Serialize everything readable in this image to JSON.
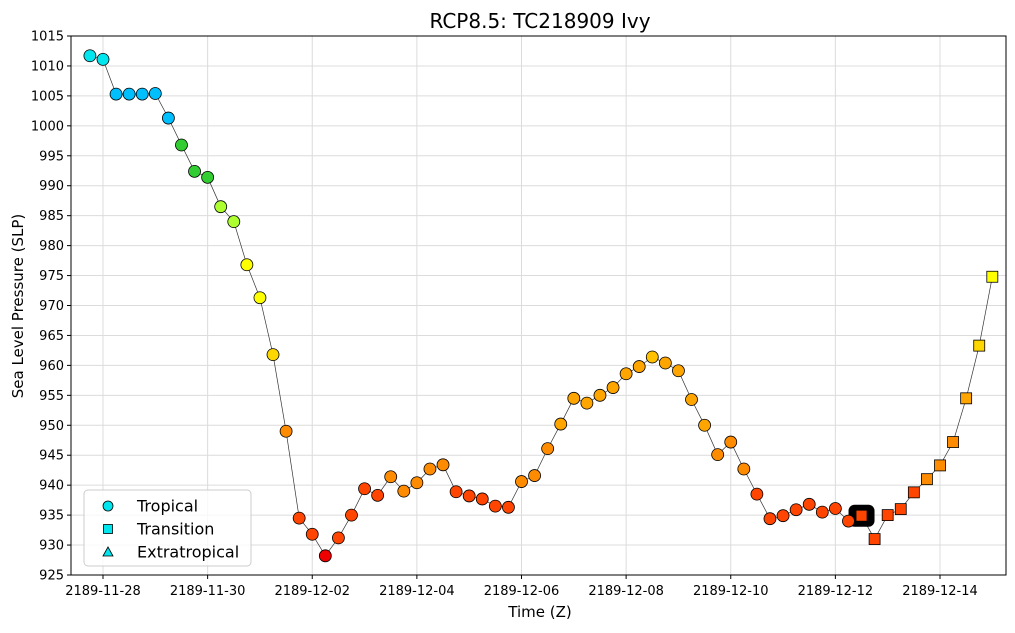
{
  "chart_data": {
    "type": "scatter",
    "title": "RCP8.5: TC218909 Ivy",
    "xlabel": "Time (Z)",
    "ylabel": "Sea Level Pressure (SLP)",
    "ylim": [
      925,
      1015
    ],
    "yticks": [
      925,
      930,
      935,
      940,
      945,
      950,
      955,
      960,
      965,
      970,
      975,
      980,
      985,
      990,
      995,
      1000,
      1005,
      1010,
      1015
    ],
    "xticks": [
      "2189-11-28",
      "2189-11-30",
      "2189-12-02",
      "2189-12-04",
      "2189-12-06",
      "2189-12-08",
      "2189-12-10",
      "2189-12-12",
      "2189-12-14"
    ],
    "xlim": [
      "2189-11-27 18:00",
      "2189-12-15 06:00"
    ],
    "grid": true,
    "legend_position": "lower-left",
    "legend": [
      {
        "label": "Tropical",
        "marker": "circle"
      },
      {
        "label": "Transition",
        "marker": "square"
      },
      {
        "label": "Extratropical",
        "marker": "triangle"
      }
    ],
    "legend_marker_color": "#00e5ee",
    "highlight": {
      "time": "2189-12-12 12:00",
      "slp": 934.9
    },
    "points": [
      {
        "time": "2189-11-27 18:00",
        "slp": 1011.7,
        "phase": "tropical",
        "color": "#00e5ee"
      },
      {
        "time": "2189-11-28 00:00",
        "slp": 1011.1,
        "phase": "tropical",
        "color": "#00e5ee"
      },
      {
        "time": "2189-11-28 06:00",
        "slp": 1005.3,
        "phase": "tropical",
        "color": "#00bfff"
      },
      {
        "time": "2189-11-28 12:00",
        "slp": 1005.3,
        "phase": "tropical",
        "color": "#00bfff"
      },
      {
        "time": "2189-11-28 18:00",
        "slp": 1005.3,
        "phase": "tropical",
        "color": "#00bfff"
      },
      {
        "time": "2189-11-29 00:00",
        "slp": 1005.4,
        "phase": "tropical",
        "color": "#00bfff"
      },
      {
        "time": "2189-11-29 06:00",
        "slp": 1001.3,
        "phase": "tropical",
        "color": "#00bfff"
      },
      {
        "time": "2189-11-29 12:00",
        "slp": 996.8,
        "phase": "tropical",
        "color": "#32cd32"
      },
      {
        "time": "2189-11-29 18:00",
        "slp": 992.4,
        "phase": "tropical",
        "color": "#32cd32"
      },
      {
        "time": "2189-11-30 00:00",
        "slp": 991.4,
        "phase": "tropical",
        "color": "#32cd32"
      },
      {
        "time": "2189-11-30 06:00",
        "slp": 986.5,
        "phase": "tropical",
        "color": "#adff2f"
      },
      {
        "time": "2189-11-30 12:00",
        "slp": 984.0,
        "phase": "tropical",
        "color": "#adff2f"
      },
      {
        "time": "2189-11-30 18:00",
        "slp": 976.8,
        "phase": "tropical",
        "color": "#ffff00"
      },
      {
        "time": "2189-12-01 00:00",
        "slp": 971.3,
        "phase": "tropical",
        "color": "#ffff00"
      },
      {
        "time": "2189-12-01 06:00",
        "slp": 961.8,
        "phase": "tropical",
        "color": "#ffd700"
      },
      {
        "time": "2189-12-01 12:00",
        "slp": 949.0,
        "phase": "tropical",
        "color": "#ff8c00"
      },
      {
        "time": "2189-12-01 18:00",
        "slp": 934.5,
        "phase": "tropical",
        "color": "#ff4500"
      },
      {
        "time": "2189-12-02 00:00",
        "slp": 931.8,
        "phase": "tropical",
        "color": "#ff4500"
      },
      {
        "time": "2189-12-02 06:00",
        "slp": 928.2,
        "phase": "tropical",
        "color": "#ee0000"
      },
      {
        "time": "2189-12-02 12:00",
        "slp": 931.2,
        "phase": "tropical",
        "color": "#ff4500"
      },
      {
        "time": "2189-12-02 18:00",
        "slp": 935.0,
        "phase": "tropical",
        "color": "#ff4500"
      },
      {
        "time": "2189-12-03 00:00",
        "slp": 939.4,
        "phase": "tropical",
        "color": "#ff4500"
      },
      {
        "time": "2189-12-03 06:00",
        "slp": 938.3,
        "phase": "tropical",
        "color": "#ff4500"
      },
      {
        "time": "2189-12-03 12:00",
        "slp": 941.4,
        "phase": "tropical",
        "color": "#ff8c00"
      },
      {
        "time": "2189-12-03 18:00",
        "slp": 939.0,
        "phase": "tropical",
        "color": "#ff8c00"
      },
      {
        "time": "2189-12-04 00:00",
        "slp": 940.4,
        "phase": "tropical",
        "color": "#ff8c00"
      },
      {
        "time": "2189-12-04 06:00",
        "slp": 942.7,
        "phase": "tropical",
        "color": "#ff8c00"
      },
      {
        "time": "2189-12-04 12:00",
        "slp": 943.4,
        "phase": "tropical",
        "color": "#ff8c00"
      },
      {
        "time": "2189-12-04 18:00",
        "slp": 938.9,
        "phase": "tropical",
        "color": "#ff4500"
      },
      {
        "time": "2189-12-05 00:00",
        "slp": 938.2,
        "phase": "tropical",
        "color": "#ff4500"
      },
      {
        "time": "2189-12-05 06:00",
        "slp": 937.7,
        "phase": "tropical",
        "color": "#ff4500"
      },
      {
        "time": "2189-12-05 12:00",
        "slp": 936.5,
        "phase": "tropical",
        "color": "#ff4500"
      },
      {
        "time": "2189-12-05 18:00",
        "slp": 936.3,
        "phase": "tropical",
        "color": "#ff4500"
      },
      {
        "time": "2189-12-06 00:00",
        "slp": 940.6,
        "phase": "tropical",
        "color": "#ff8c00"
      },
      {
        "time": "2189-12-06 06:00",
        "slp": 941.6,
        "phase": "tropical",
        "color": "#ff8c00"
      },
      {
        "time": "2189-12-06 12:00",
        "slp": 946.1,
        "phase": "tropical",
        "color": "#ff8c00"
      },
      {
        "time": "2189-12-06 18:00",
        "slp": 950.2,
        "phase": "tropical",
        "color": "#ffa500"
      },
      {
        "time": "2189-12-07 00:00",
        "slp": 954.5,
        "phase": "tropical",
        "color": "#ffa500"
      },
      {
        "time": "2189-12-07 06:00",
        "slp": 953.7,
        "phase": "tropical",
        "color": "#ffa500"
      },
      {
        "time": "2189-12-07 12:00",
        "slp": 955.0,
        "phase": "tropical",
        "color": "#ffa500"
      },
      {
        "time": "2189-12-07 18:00",
        "slp": 956.3,
        "phase": "tropical",
        "color": "#ffa500"
      },
      {
        "time": "2189-12-08 00:00",
        "slp": 958.6,
        "phase": "tropical",
        "color": "#ffa500"
      },
      {
        "time": "2189-12-08 06:00",
        "slp": 959.8,
        "phase": "tropical",
        "color": "#ffa500"
      },
      {
        "time": "2189-12-08 12:00",
        "slp": 961.4,
        "phase": "tropical",
        "color": "#ffc000"
      },
      {
        "time": "2189-12-08 18:00",
        "slp": 960.4,
        "phase": "tropical",
        "color": "#ffa500"
      },
      {
        "time": "2189-12-09 00:00",
        "slp": 959.1,
        "phase": "tropical",
        "color": "#ffa500"
      },
      {
        "time": "2189-12-09 06:00",
        "slp": 954.3,
        "phase": "tropical",
        "color": "#ffa500"
      },
      {
        "time": "2189-12-09 12:00",
        "slp": 950.0,
        "phase": "tropical",
        "color": "#ffa500"
      },
      {
        "time": "2189-12-09 18:00",
        "slp": 945.1,
        "phase": "tropical",
        "color": "#ff8c00"
      },
      {
        "time": "2189-12-10 00:00",
        "slp": 947.2,
        "phase": "tropical",
        "color": "#ff8c00"
      },
      {
        "time": "2189-12-10 06:00",
        "slp": 942.7,
        "phase": "tropical",
        "color": "#ff8c00"
      },
      {
        "time": "2189-12-10 12:00",
        "slp": 938.5,
        "phase": "tropical",
        "color": "#ff4500"
      },
      {
        "time": "2189-12-10 18:00",
        "slp": 934.4,
        "phase": "tropical",
        "color": "#ff4500"
      },
      {
        "time": "2189-12-11 00:00",
        "slp": 934.9,
        "phase": "tropical",
        "color": "#ff4500"
      },
      {
        "time": "2189-12-11 06:00",
        "slp": 935.9,
        "phase": "tropical",
        "color": "#ff4500"
      },
      {
        "time": "2189-12-11 12:00",
        "slp": 936.8,
        "phase": "tropical",
        "color": "#ff4500"
      },
      {
        "time": "2189-12-11 18:00",
        "slp": 935.5,
        "phase": "tropical",
        "color": "#ff4500"
      },
      {
        "time": "2189-12-12 00:00",
        "slp": 936.1,
        "phase": "tropical",
        "color": "#ff4500"
      },
      {
        "time": "2189-12-12 06:00",
        "slp": 934.0,
        "phase": "tropical",
        "color": "#ff4500"
      },
      {
        "time": "2189-12-12 12:00",
        "slp": 934.9,
        "phase": "transition",
        "color": "#ff4500"
      },
      {
        "time": "2189-12-12 18:00",
        "slp": 931.0,
        "phase": "transition",
        "color": "#ff4500"
      },
      {
        "time": "2189-12-13 00:00",
        "slp": 935.0,
        "phase": "transition",
        "color": "#ff4500"
      },
      {
        "time": "2189-12-13 06:00",
        "slp": 936.0,
        "phase": "transition",
        "color": "#ff4500"
      },
      {
        "time": "2189-12-13 12:00",
        "slp": 938.8,
        "phase": "transition",
        "color": "#ff4500"
      },
      {
        "time": "2189-12-13 18:00",
        "slp": 941.0,
        "phase": "transition",
        "color": "#ff8c00"
      },
      {
        "time": "2189-12-14 00:00",
        "slp": 943.3,
        "phase": "transition",
        "color": "#ff8c00"
      },
      {
        "time": "2189-12-14 06:00",
        "slp": 947.2,
        "phase": "transition",
        "color": "#ff8c00"
      },
      {
        "time": "2189-12-14 12:00",
        "slp": 954.5,
        "phase": "transition",
        "color": "#ffa500"
      },
      {
        "time": "2189-12-14 18:00",
        "slp": 963.3,
        "phase": "transition",
        "color": "#ffd700"
      },
      {
        "time": "2189-12-15 00:00",
        "slp": 974.8,
        "phase": "transition",
        "color": "#ffff00"
      }
    ]
  }
}
